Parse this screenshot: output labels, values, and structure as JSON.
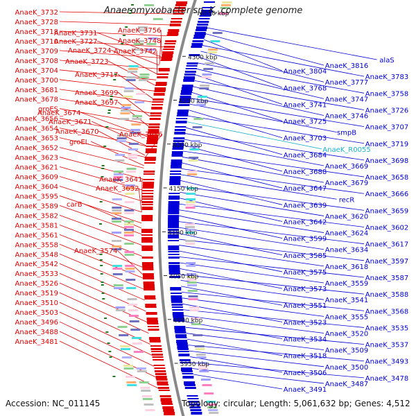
{
  "title": "Anaeromyxobacter sp. K, complete genome",
  "footer": {
    "accession": "Accession: NC_011145",
    "topology": "Topology: circular; Length: 5,061,632 bp; Genes: 4,512"
  },
  "colors": {
    "forward_strand": "#e00000",
    "reverse_strand": "#0000d8",
    "rna_label": "#19b3cc",
    "backbone": "#888888",
    "tick": "#1f7a1f"
  },
  "map": {
    "ticks": [
      {
        "label": "4350 kbp",
        "kbp": 4350
      },
      {
        "label": "4300 kbp",
        "kbp": 4300
      },
      {
        "label": "4250 kbp",
        "kbp": 4250
      },
      {
        "label": "4200 kbp",
        "kbp": 4200
      },
      {
        "label": "4150 kbp",
        "kbp": 4150
      },
      {
        "label": "4100 kbp",
        "kbp": 4100
      },
      {
        "label": "4050 kbp",
        "kbp": 4050
      },
      {
        "label": "4000 kbp",
        "kbp": 4000
      },
      {
        "label": "3950 kbp",
        "kbp": 3950
      }
    ],
    "left_labels": [
      "AnaeK_3732",
      "AnaeK_3728",
      "AnaeK_3718",
      "AnaeK_3710",
      "AnaeK_3709",
      "AnaeK_3708",
      "AnaeK_3704",
      "AnaeK_3700",
      "AnaeK_3681",
      "AnaeK_3678",
      "groES",
      "AnaeK_3656",
      "AnaeK_3654",
      "AnaeK_3653",
      "AnaeK_3652",
      "AnaeK_3623",
      "AnaeK_3621",
      "AnaeK_3609",
      "AnaeK_3604",
      "AnaeK_3595",
      "AnaeK_3589",
      "AnaeK_3582",
      "AnaeK_3581",
      "AnaeK_3561",
      "AnaeK_3558",
      "AnaeK_3548",
      "AnaeK_3542",
      "AnaeK_3533",
      "AnaeK_3526",
      "AnaeK_3519",
      "AnaeK_3510",
      "AnaeK_3503",
      "AnaeK_3496",
      "AnaeK_3488",
      "AnaeK_3481"
    ],
    "left_labels_inner": [
      "AnaeK_3731",
      "AnaeK_3727",
      "AnaeK_3724",
      "AnaeK_3723",
      "AnaeK_3717",
      "AnaeK_3699",
      "AnaeK_3697",
      "AnaeK_3674",
      "AnaeK_3671",
      "AnaeK_3670",
      "groEL",
      "AnaeK_3756",
      "AnaeK_3748",
      "AnaeK_3742",
      "AnaeK_3686",
      "AnaeK_3641",
      "AnaeK_3632",
      "carB",
      "AnaeK_3574"
    ],
    "right_labels": [
      "alaS",
      "AnaeK_3816",
      "AnaeK_3804",
      "AnaeK_3783",
      "AnaeK_3777",
      "AnaeK_3768",
      "AnaeK_3758",
      "AnaeK_3747",
      "AnaeK_3741",
      "AnaeK_3726",
      "AnaeK_3746",
      "AnaeK_3725",
      "AnaeK_3707",
      "smpB",
      "AnaeK_3703",
      "AnaeK_3719",
      "AnaeK_R0055",
      "AnaeK_3684",
      "AnaeK_3698",
      "AnaeK_3669",
      "AnaeK_3688",
      "AnaeK_3658",
      "AnaeK_3679",
      "AnaeK_3647",
      "AnaeK_3666",
      "recR",
      "AnaeK_3639",
      "AnaeK_3659",
      "AnaeK_3620",
      "AnaeK_3642",
      "AnaeK_3602",
      "AnaeK_3624",
      "AnaeK_3599",
      "AnaeK_3617",
      "AnaeK_3634",
      "AnaeK_3585",
      "AnaeK_3597",
      "AnaeK_3618",
      "AnaeK_3575",
      "AnaeK_3587",
      "AnaeK_3559",
      "AnaeK_3573",
      "AnaeK_3588",
      "AnaeK_3541",
      "AnaeK_3551",
      "AnaeK_3568",
      "AnaeK_3555",
      "AnaeK_3523",
      "AnaeK_3535",
      "AnaeK_3520",
      "AnaeK_3534",
      "AnaeK_3537",
      "AnaeK_3509",
      "AnaeK_3518",
      "AnaeK_3493",
      "AnaeK_3500",
      "AnaeK_3506",
      "AnaeK_3478",
      "AnaeK_3487",
      "AnaeK_3491"
    ]
  }
}
